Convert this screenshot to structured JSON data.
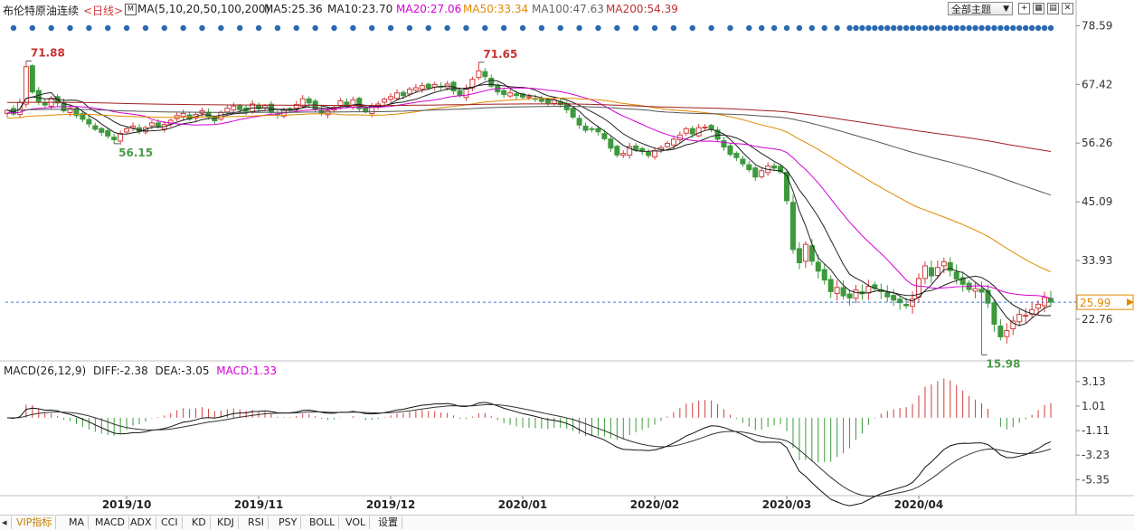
{
  "header": {
    "instrument": "布伦特原油连续",
    "period": "<日线>",
    "ma_label": "MA(5,10,20,50,100,200)",
    "ma5": "MA5:25.36",
    "ma10": "MA10:23.70",
    "ma20": "MA20:27.06",
    "ma50": "MA50:33.34",
    "ma100": "MA100:47.63",
    "ma200": "MA200:54.39",
    "theme_button": "全部主题"
  },
  "macd_header": {
    "label": "MACD(26,12,9)",
    "diff": "DIFF:-2.38",
    "dea": "DEA:-3.05",
    "macd": "MACD:1.33"
  },
  "colors": {
    "up": "#d23c3c",
    "down": "#3c9a3c",
    "ma5": "#222222",
    "ma10": "#222222",
    "ma20": "#d400d4",
    "ma50": "#e08a00",
    "ma100": "#555555",
    "ma200": "#a02020",
    "marker_dot": "#2a6ab0",
    "price_line": "#3a7ad8"
  },
  "tabs": [
    "VIP指标",
    "MA",
    "MACD",
    "ADX",
    "CCI",
    "KD",
    "KDJ",
    "RSI",
    "PSY",
    "BOLL",
    "VOL",
    "设置"
  ],
  "chart_data": {
    "type": "candlestick",
    "y_axis_ticks": [
      78.59,
      67.42,
      56.26,
      45.09,
      33.93,
      22.76
    ],
    "ylim": [
      15.0,
      79.7
    ],
    "current_price": "25.99",
    "x_axis_labels": [
      "2019/10",
      "2019/11",
      "2019/12",
      "2020/01",
      "2020/02",
      "2020/03",
      "2020/04"
    ],
    "annotations": [
      {
        "text": "71.88",
        "type": "high"
      },
      {
        "text": "56.15",
        "type": "low"
      },
      {
        "text": "71.65",
        "type": "high"
      },
      {
        "text": "15.98",
        "type": "low"
      }
    ],
    "close_series": [
      62.5,
      61.8,
      64.0,
      70.8,
      66.0,
      64.2,
      63.5,
      64.8,
      63.9,
      62.4,
      62.9,
      61.5,
      60.8,
      59.9,
      58.9,
      58.3,
      57.6,
      56.9,
      58.1,
      59.0,
      59.5,
      58.5,
      59.2,
      60.1,
      59.3,
      59.8,
      60.6,
      61.5,
      61.9,
      60.8,
      61.7,
      62.4,
      61.2,
      60.5,
      62.1,
      62.9,
      63.3,
      62.6,
      62.3,
      63.7,
      62.8,
      63.4,
      62.1,
      61.6,
      62.5,
      62.8,
      63.6,
      64.7,
      63.9,
      62.6,
      62.0,
      62.4,
      63.1,
      64.3,
      63.4,
      64.5,
      62.8,
      62.2,
      63.2,
      63.7,
      64.6,
      65.1,
      65.8,
      65.3,
      66.5,
      66.8,
      67.2,
      66.7,
      67.4,
      66.9,
      67.5,
      66.2,
      65.3,
      66.7,
      68.4,
      70.0,
      68.9,
      67.1,
      66.0,
      65.5,
      65.8,
      65.3,
      65.0,
      65.1,
      64.7,
      64.2,
      63.9,
      64.5,
      63.6,
      62.6,
      61.2,
      59.7,
      58.7,
      58.9,
      58.4,
      57.1,
      55.3,
      54.0,
      54.3,
      55.6,
      54.9,
      54.7,
      53.9,
      54.8,
      55.4,
      56.2,
      57.0,
      57.8,
      59.0,
      58.0,
      59.2,
      59.3,
      58.9,
      57.0,
      55.5,
      54.1,
      53.5,
      52.3,
      51.2,
      49.8,
      51.0,
      51.9,
      51.5,
      50.8,
      45.3,
      36.0,
      33.5,
      37.0,
      33.8,
      31.9,
      30.2,
      28.0,
      28.8,
      27.2,
      26.8,
      28.3,
      27.6,
      29.0,
      28.6,
      28.0,
      27.0,
      26.4,
      25.9,
      25.3,
      26.6,
      30.5,
      32.9,
      31.0,
      32.6,
      33.7,
      32.0,
      30.4,
      29.4,
      28.4,
      28.6,
      27.9,
      25.8,
      21.8,
      19.4,
      20.6,
      22.4,
      23.7,
      23.5,
      24.6,
      25.6,
      26.9,
      26.0
    ],
    "macd_axis_ticks": [
      3.13,
      1.01,
      -1.11,
      -3.23,
      -5.35
    ],
    "macd_ylim": [
      -6.5,
      3.9
    ],
    "diff_last": -2.38,
    "dea_last": -3.05,
    "macd_last": 1.33
  }
}
